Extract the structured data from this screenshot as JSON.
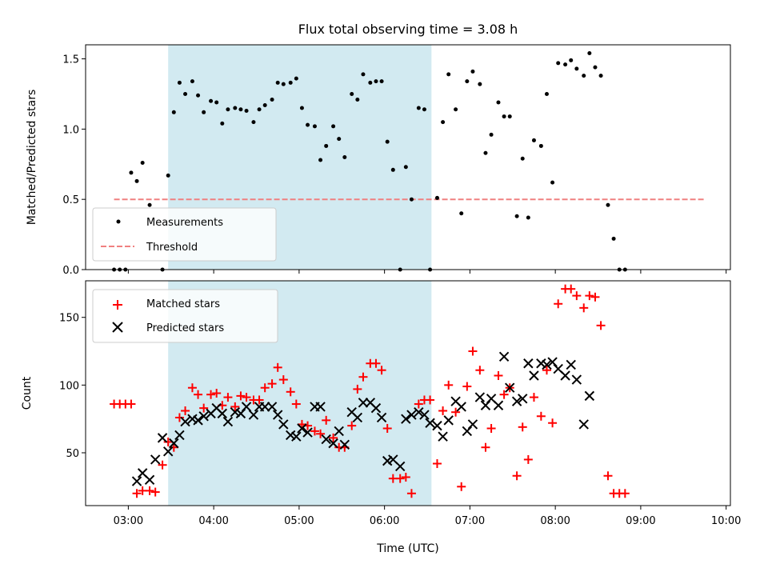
{
  "title": "Flux total observing time = 3.08 h",
  "colors": {
    "shade": "#add8e6",
    "measurement": "#000000",
    "threshold": "#f08080",
    "matched": "#ff0000",
    "predicted": "#000000"
  },
  "chart_data": [
    {
      "type": "scatter",
      "id": "ratio",
      "title": "Flux total observing time = 3.08 h",
      "xlabel": "",
      "ylabel": "Matched/Predicted stars",
      "xlim": [
        "02:30",
        "10:03"
      ],
      "ylim": [
        0,
        1.6
      ],
      "yticks": [
        0.0,
        0.5,
        1.0,
        1.5
      ],
      "ytick_labels": [
        "0.0",
        "0.5",
        "1.0",
        "1.5"
      ],
      "xticks": [
        "03:00",
        "04:00",
        "05:00",
        "06:00",
        "07:00",
        "08:00",
        "09:00",
        "10:00"
      ],
      "shaded_span": [
        "03:28",
        "06:33"
      ],
      "legend": {
        "position": "lower-left",
        "entries": [
          {
            "label": "Measurements",
            "marker": "dot"
          },
          {
            "label": "Threshold",
            "marker": "dashed-line"
          }
        ]
      },
      "threshold": {
        "name": "Threshold",
        "value": 0.5,
        "x_from": "02:50",
        "x_to": "09:45"
      },
      "series": [
        {
          "name": "Measurements",
          "marker": "dot",
          "points": [
            [
              "02:50",
              0.0
            ],
            [
              "02:54",
              0.0
            ],
            [
              "02:58",
              0.0
            ],
            [
              "03:02",
              0.69
            ],
            [
              "03:06",
              0.63
            ],
            [
              "03:10",
              0.76
            ],
            [
              "03:15",
              0.46
            ],
            [
              "03:24",
              0.0
            ],
            [
              "03:28",
              0.67
            ],
            [
              "03:32",
              1.12
            ],
            [
              "03:36",
              1.33
            ],
            [
              "03:40",
              1.25
            ],
            [
              "03:45",
              1.34
            ],
            [
              "03:49",
              1.24
            ],
            [
              "03:53",
              1.12
            ],
            [
              "03:58",
              1.2
            ],
            [
              "04:02",
              1.19
            ],
            [
              "04:06",
              1.04
            ],
            [
              "04:10",
              1.14
            ],
            [
              "04:15",
              1.15
            ],
            [
              "04:19",
              1.14
            ],
            [
              "04:23",
              1.13
            ],
            [
              "04:28",
              1.05
            ],
            [
              "04:32",
              1.14
            ],
            [
              "04:36",
              1.17
            ],
            [
              "04:41",
              1.21
            ],
            [
              "04:45",
              1.33
            ],
            [
              "04:49",
              1.32
            ],
            [
              "04:54",
              1.33
            ],
            [
              "04:58",
              1.36
            ],
            [
              "05:02",
              1.15
            ],
            [
              "05:06",
              1.03
            ],
            [
              "05:11",
              1.02
            ],
            [
              "05:15",
              0.78
            ],
            [
              "05:19",
              0.88
            ],
            [
              "05:24",
              1.02
            ],
            [
              "05:28",
              0.93
            ],
            [
              "05:32",
              0.8
            ],
            [
              "05:37",
              1.25
            ],
            [
              "05:41",
              1.21
            ],
            [
              "05:45",
              1.39
            ],
            [
              "05:50",
              1.33
            ],
            [
              "05:54",
              1.34
            ],
            [
              "05:58",
              1.34
            ],
            [
              "06:02",
              0.91
            ],
            [
              "06:06",
              0.71
            ],
            [
              "06:11",
              0.0
            ],
            [
              "06:15",
              0.73
            ],
            [
              "06:19",
              0.5
            ],
            [
              "06:24",
              1.15
            ],
            [
              "06:28",
              1.14
            ],
            [
              "06:32",
              0.0
            ],
            [
              "06:37",
              0.51
            ],
            [
              "06:41",
              1.05
            ],
            [
              "06:45",
              1.39
            ],
            [
              "06:50",
              1.14
            ],
            [
              "06:54",
              0.4
            ],
            [
              "06:58",
              1.34
            ],
            [
              "07:02",
              1.41
            ],
            [
              "07:07",
              1.32
            ],
            [
              "07:11",
              0.83
            ],
            [
              "07:15",
              0.96
            ],
            [
              "07:20",
              1.19
            ],
            [
              "07:24",
              1.09
            ],
            [
              "07:28",
              1.09
            ],
            [
              "07:33",
              0.38
            ],
            [
              "07:37",
              0.79
            ],
            [
              "07:41",
              0.37
            ],
            [
              "07:45",
              0.92
            ],
            [
              "07:50",
              0.88
            ],
            [
              "07:54",
              1.25
            ],
            [
              "07:58",
              0.62
            ],
            [
              "08:02",
              1.47
            ],
            [
              "08:07",
              1.46
            ],
            [
              "08:11",
              1.49
            ],
            [
              "08:15",
              1.43
            ],
            [
              "08:20",
              1.38
            ],
            [
              "08:24",
              1.54
            ],
            [
              "08:28",
              1.44
            ],
            [
              "08:32",
              1.38
            ],
            [
              "08:37",
              0.46
            ],
            [
              "08:41",
              0.22
            ],
            [
              "08:45",
              0.0
            ],
            [
              "08:49",
              0.0
            ]
          ]
        }
      ]
    },
    {
      "type": "scatter",
      "id": "counts",
      "title": "",
      "xlabel": "Time (UTC)",
      "ylabel": "Count",
      "xlim": [
        "02:30",
        "10:03"
      ],
      "ylim": [
        11,
        177
      ],
      "yticks": [
        50,
        100,
        150
      ],
      "ytick_labels": [
        "50",
        "100",
        "150"
      ],
      "xticks": [
        "03:00",
        "04:00",
        "05:00",
        "06:00",
        "07:00",
        "08:00",
        "09:00",
        "10:00"
      ],
      "shaded_span": [
        "03:28",
        "06:33"
      ],
      "legend": {
        "position": "upper-left",
        "entries": [
          {
            "label": "Matched stars",
            "marker": "plus"
          },
          {
            "label": "Predicted stars",
            "marker": "cross"
          }
        ]
      },
      "series": [
        {
          "name": "Matched stars",
          "marker": "plus",
          "points": [
            [
              "02:50",
              86
            ],
            [
              "02:54",
              86
            ],
            [
              "02:58",
              86
            ],
            [
              "03:02",
              86
            ],
            [
              "03:06",
              20
            ],
            [
              "03:10",
              22
            ],
            [
              "03:15",
              22
            ],
            [
              "03:19",
              21
            ],
            [
              "03:24",
              41
            ],
            [
              "03:28",
              58
            ],
            [
              "03:32",
              54
            ],
            [
              "03:36",
              76
            ],
            [
              "03:40",
              81
            ],
            [
              "03:45",
              98
            ],
            [
              "03:49",
              93
            ],
            [
              "03:53",
              83
            ],
            [
              "03:58",
              93
            ],
            [
              "04:02",
              94
            ],
            [
              "04:06",
              85
            ],
            [
              "04:10",
              91
            ],
            [
              "04:15",
              84
            ],
            [
              "04:19",
              92
            ],
            [
              "04:23",
              91
            ],
            [
              "04:28",
              89
            ],
            [
              "04:32",
              89
            ],
            [
              "04:36",
              98
            ],
            [
              "04:41",
              101
            ],
            [
              "04:45",
              113
            ],
            [
              "04:49",
              104
            ],
            [
              "04:54",
              95
            ],
            [
              "04:58",
              86
            ],
            [
              "05:02",
              71
            ],
            [
              "05:06",
              70
            ],
            [
              "05:11",
              66
            ],
            [
              "05:15",
              64
            ],
            [
              "05:19",
              74
            ],
            [
              "05:24",
              61
            ],
            [
              "05:28",
              54
            ],
            [
              "05:32",
              54
            ],
            [
              "05:37",
              70
            ],
            [
              "05:41",
              97
            ],
            [
              "05:45",
              106
            ],
            [
              "05:50",
              116
            ],
            [
              "05:54",
              116
            ],
            [
              "05:58",
              111
            ],
            [
              "06:02",
              68
            ],
            [
              "06:06",
              31
            ],
            [
              "06:11",
              31
            ],
            [
              "06:15",
              32
            ],
            [
              "06:19",
              20
            ],
            [
              "06:24",
              86
            ],
            [
              "06:28",
              89
            ],
            [
              "06:32",
              89
            ],
            [
              "06:37",
              42
            ],
            [
              "06:41",
              81
            ],
            [
              "06:45",
              100
            ],
            [
              "06:50",
              80
            ],
            [
              "06:54",
              25
            ],
            [
              "06:58",
              99
            ],
            [
              "07:02",
              125
            ],
            [
              "07:07",
              111
            ],
            [
              "07:11",
              54
            ],
            [
              "07:15",
              68
            ],
            [
              "07:20",
              107
            ],
            [
              "07:24",
              93
            ],
            [
              "07:28",
              98
            ],
            [
              "07:33",
              33
            ],
            [
              "07:37",
              69
            ],
            [
              "07:41",
              45
            ],
            [
              "07:45",
              91
            ],
            [
              "07:50",
              77
            ],
            [
              "07:54",
              111
            ],
            [
              "07:58",
              72
            ],
            [
              "08:02",
              160
            ],
            [
              "08:07",
              171
            ],
            [
              "08:11",
              171
            ],
            [
              "08:15",
              166
            ],
            [
              "08:20",
              157
            ],
            [
              "08:24",
              166
            ],
            [
              "08:28",
              165
            ],
            [
              "08:32",
              144
            ],
            [
              "08:37",
              33
            ],
            [
              "08:41",
              20
            ],
            [
              "08:45",
              20
            ],
            [
              "08:49",
              20
            ]
          ]
        },
        {
          "name": "Predicted stars",
          "marker": "cross",
          "points": [
            [
              "03:06",
              29
            ],
            [
              "03:10",
              35
            ],
            [
              "03:15",
              30
            ],
            [
              "03:19",
              45
            ],
            [
              "03:24",
              61
            ],
            [
              "03:28",
              51
            ],
            [
              "03:32",
              57
            ],
            [
              "03:36",
              63
            ],
            [
              "03:40",
              73
            ],
            [
              "03:45",
              75
            ],
            [
              "03:49",
              74
            ],
            [
              "03:53",
              77
            ],
            [
              "03:58",
              79
            ],
            [
              "04:02",
              83
            ],
            [
              "04:06",
              79
            ],
            [
              "04:10",
              73
            ],
            [
              "04:15",
              80
            ],
            [
              "04:19",
              79
            ],
            [
              "04:23",
              84
            ],
            [
              "04:28",
              78
            ],
            [
              "04:32",
              84
            ],
            [
              "04:36",
              84
            ],
            [
              "04:41",
              84
            ],
            [
              "04:45",
              78
            ],
            [
              "04:49",
              71
            ],
            [
              "04:54",
              63
            ],
            [
              "04:58",
              62
            ],
            [
              "05:02",
              68
            ],
            [
              "05:06",
              65
            ],
            [
              "05:11",
              84
            ],
            [
              "05:15",
              84
            ],
            [
              "05:19",
              60
            ],
            [
              "05:24",
              57
            ],
            [
              "05:28",
              66
            ],
            [
              "05:32",
              56
            ],
            [
              "05:37",
              80
            ],
            [
              "05:41",
              76
            ],
            [
              "05:45",
              87
            ],
            [
              "05:50",
              87
            ],
            [
              "05:54",
              83
            ],
            [
              "05:58",
              76
            ],
            [
              "06:02",
              44
            ],
            [
              "06:06",
              45
            ],
            [
              "06:11",
              40
            ],
            [
              "06:15",
              75
            ],
            [
              "06:19",
              78
            ],
            [
              "06:24",
              80
            ],
            [
              "06:28",
              78
            ],
            [
              "06:32",
              72
            ],
            [
              "06:37",
              70
            ],
            [
              "06:41",
              62
            ],
            [
              "06:45",
              74
            ],
            [
              "06:50",
              88
            ],
            [
              "06:54",
              84
            ],
            [
              "06:58",
              66
            ],
            [
              "07:02",
              71
            ],
            [
              "07:07",
              91
            ],
            [
              "07:11",
              85
            ],
            [
              "07:15",
              90
            ],
            [
              "07:20",
              85
            ],
            [
              "07:24",
              121
            ],
            [
              "07:28",
              98
            ],
            [
              "07:33",
              88
            ],
            [
              "07:37",
              90
            ],
            [
              "07:41",
              116
            ],
            [
              "07:45",
              107
            ],
            [
              "07:50",
              116
            ],
            [
              "07:54",
              115
            ],
            [
              "07:58",
              117
            ],
            [
              "08:02",
              112
            ],
            [
              "08:07",
              107
            ],
            [
              "08:11",
              115
            ],
            [
              "08:15",
              104
            ],
            [
              "08:20",
              71
            ],
            [
              "08:24",
              92
            ]
          ]
        }
      ]
    }
  ]
}
